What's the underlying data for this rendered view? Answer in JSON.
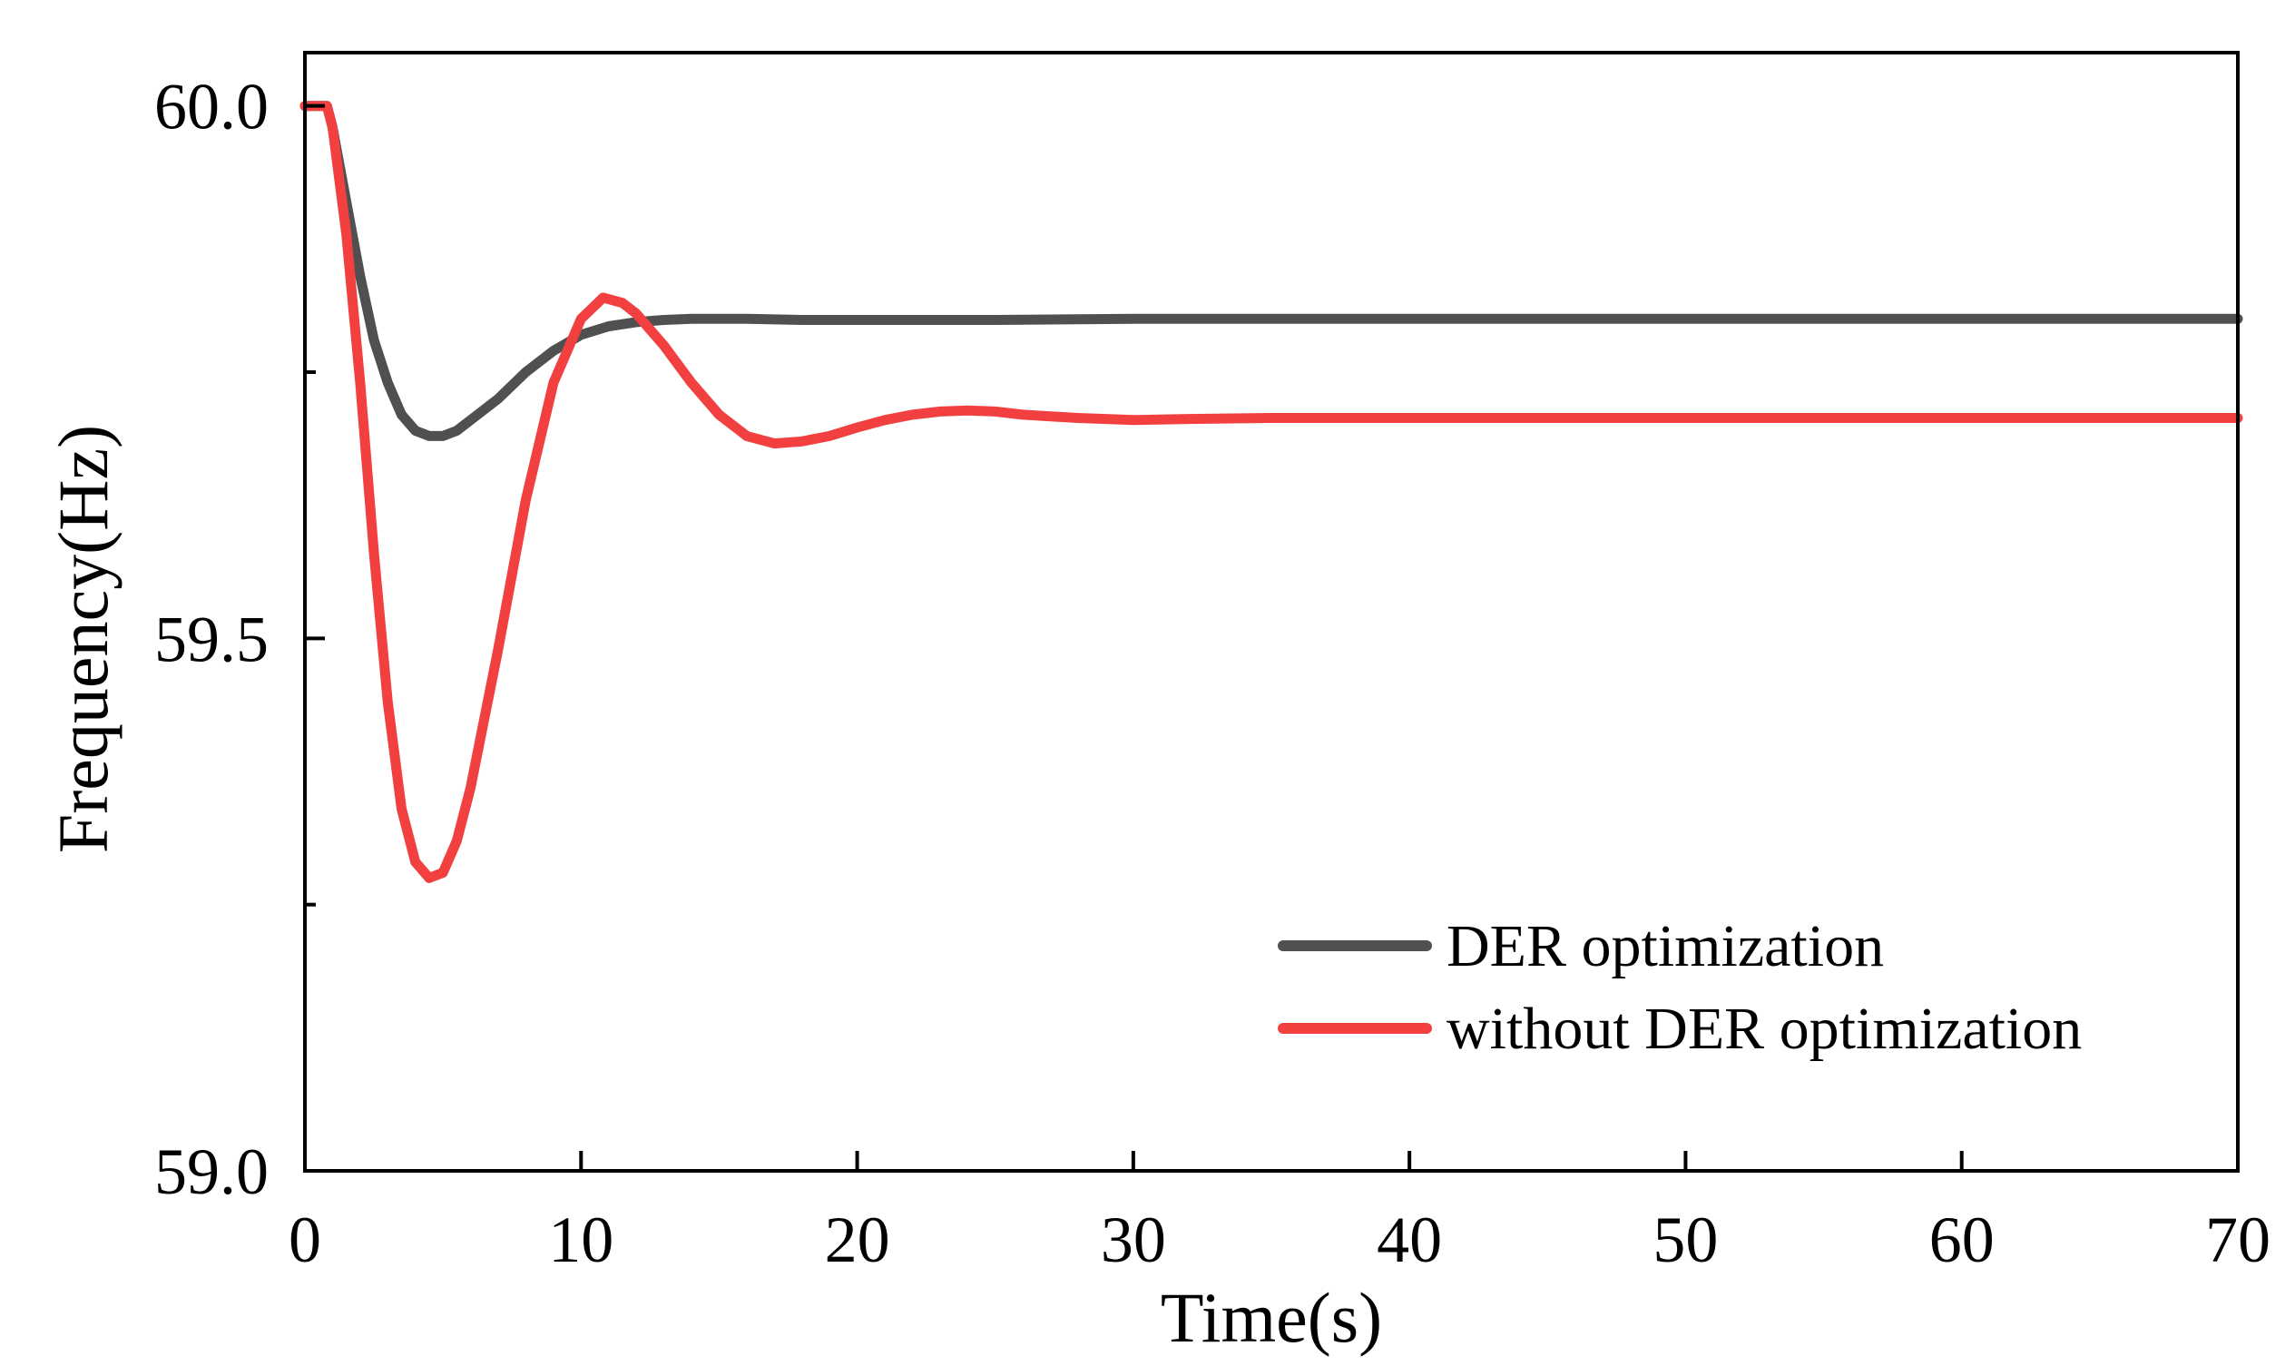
{
  "chart_data": {
    "type": "line",
    "title": "",
    "xlabel": "Time(s)",
    "ylabel": "Frequency(Hz)",
    "xlim": [
      0,
      70
    ],
    "ylim": [
      59.0,
      60.05
    ],
    "x_ticks": [
      0,
      10,
      20,
      30,
      40,
      50,
      60,
      70
    ],
    "x_tick_labels": [
      "0",
      "10",
      "20",
      "30",
      "40",
      "50",
      "60",
      "70"
    ],
    "y_major_ticks": [
      59.0,
      59.5,
      60.0
    ],
    "y_tick_labels": [
      "59.0",
      "59.5",
      "60.0"
    ],
    "y_minor_ticks": [
      59.25,
      59.75
    ],
    "grid": false,
    "legend_position": "bottom-right",
    "series": [
      {
        "name": "DER optimization",
        "color": "#505050",
        "x": [
          0,
          0.8,
          1.0,
          1.5,
          2.0,
          2.5,
          3.0,
          3.5,
          4.0,
          4.5,
          5.0,
          5.5,
          6.0,
          7.0,
          8.0,
          9.0,
          10.0,
          11.0,
          12.0,
          13.0,
          14.0,
          15.0,
          16.0,
          18.0,
          20.0,
          25.0,
          30.0,
          40.0,
          50.0,
          60.0,
          70.0
        ],
        "y": [
          60.0,
          60.0,
          59.98,
          59.91,
          59.84,
          59.78,
          59.74,
          59.71,
          59.695,
          59.69,
          59.69,
          59.695,
          59.705,
          59.725,
          59.75,
          59.77,
          59.785,
          59.793,
          59.797,
          59.799,
          59.8,
          59.8,
          59.8,
          59.799,
          59.799,
          59.799,
          59.8,
          59.8,
          59.8,
          59.8,
          59.8
        ]
      },
      {
        "name": "without DER optimization",
        "color": "#f24040",
        "x": [
          0,
          0.8,
          1.0,
          1.5,
          2.0,
          2.5,
          3.0,
          3.5,
          4.0,
          4.5,
          5.0,
          5.5,
          6.0,
          7.0,
          8.0,
          9.0,
          10.0,
          10.8,
          11.5,
          12.0,
          13.0,
          14.0,
          15.0,
          16.0,
          17.0,
          18.0,
          19.0,
          20.0,
          21.0,
          22.0,
          23.0,
          24.0,
          25.0,
          26.0,
          28.0,
          30.0,
          32.0,
          35.0,
          40.0,
          50.0,
          60.0,
          70.0
        ],
        "y": [
          60.0,
          60.0,
          59.98,
          59.88,
          59.74,
          59.58,
          59.44,
          59.34,
          59.29,
          59.275,
          59.28,
          59.31,
          59.36,
          59.49,
          59.63,
          59.74,
          59.8,
          59.82,
          59.815,
          59.805,
          59.775,
          59.74,
          59.71,
          59.69,
          59.683,
          59.685,
          59.69,
          59.698,
          59.705,
          59.71,
          59.713,
          59.714,
          59.713,
          59.71,
          59.707,
          59.705,
          59.706,
          59.707,
          59.707,
          59.707,
          59.707,
          59.707
        ]
      }
    ]
  }
}
